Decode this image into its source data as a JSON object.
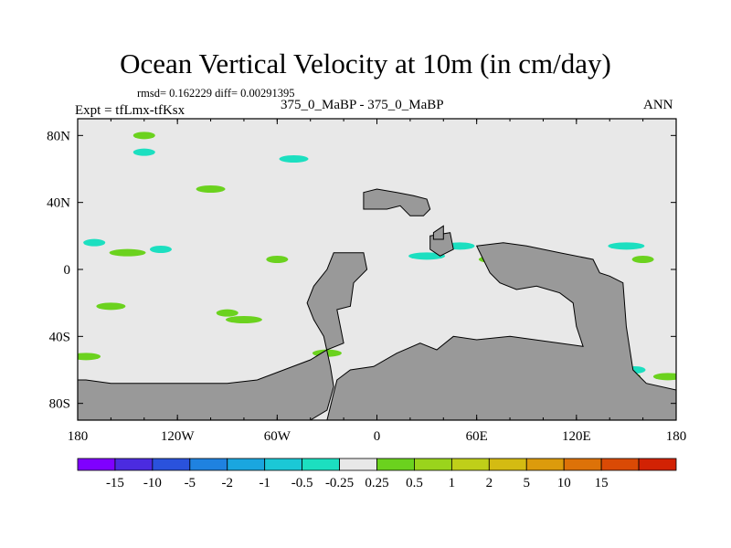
{
  "title": "Ocean Vertical Velocity at 10m (in cm/day)",
  "stats_text": "rmsd= 0.162229  diff= 0.00291395",
  "expt_text": "Expt = tfLmx-tfKsx",
  "case_text": "375_0_MaBP - 375_0_MaBP",
  "season_text": "ANN",
  "colors": {
    "land": "#999999",
    "ocean_background": "#e8e8e8",
    "bins": [
      "#7f00ff",
      "#4b2be0",
      "#2a52dc",
      "#1f82e0",
      "#1aa6df",
      "#1bc8d6",
      "#1cdfc0",
      "#e8e8e8",
      "#6bd21e",
      "#9ad41c",
      "#bfcf19",
      "#d4bb12",
      "#dc9b0c",
      "#dd7208",
      "#da4a05",
      "#d22204"
    ]
  },
  "chart_data": {
    "type": "heatmap",
    "projection": "cylindrical equidistant",
    "variable": "Ocean Vertical Velocity at 10m",
    "units": "cm/day",
    "xlim": [
      -180,
      180
    ],
    "ylim": [
      -90,
      90
    ],
    "x_ticks": [
      {
        "value": -180,
        "label": "180"
      },
      {
        "value": -120,
        "label": "120W"
      },
      {
        "value": -60,
        "label": "60W"
      },
      {
        "value": 0,
        "label": "0"
      },
      {
        "value": 60,
        "label": "60E"
      },
      {
        "value": 120,
        "label": "120E"
      },
      {
        "value": 180,
        "label": "180"
      }
    ],
    "y_ticks": [
      {
        "value": 80,
        "label": "80N"
      },
      {
        "value": 40,
        "label": "40N"
      },
      {
        "value": 0,
        "label": "0"
      },
      {
        "value": -40,
        "label": "40S"
      },
      {
        "value": -80,
        "label": "80S"
      }
    ],
    "colorbar": {
      "labels": [
        "-15",
        "-10",
        "-5",
        "-2",
        "-1",
        "-0.5",
        "-0.25",
        "0.25",
        "0.5",
        "1",
        "2",
        "5",
        "10",
        "15"
      ]
    },
    "land": [
      {
        "name": "Americas",
        "polygon": [
          [
            -26,
            10
          ],
          [
            -8,
            10
          ],
          [
            -6,
            0
          ],
          [
            -14,
            -8
          ],
          [
            -16,
            -22
          ],
          [
            -24,
            -24
          ],
          [
            -20,
            -44
          ],
          [
            -30,
            -48
          ],
          [
            -40,
            -54
          ],
          [
            -56,
            -60
          ],
          [
            -72,
            -66
          ],
          [
            -90,
            -68
          ],
          [
            -160,
            -68
          ],
          [
            -175,
            -66
          ],
          [
            -180,
            -66
          ],
          [
            -180,
            -90
          ],
          [
            -140,
            -90
          ],
          [
            -110,
            -90
          ],
          [
            -70,
            -90
          ],
          [
            -40,
            -90
          ],
          [
            -30,
            -84
          ],
          [
            -26,
            -70
          ],
          [
            -28,
            -58
          ],
          [
            -32,
            -40
          ],
          [
            -38,
            -30
          ],
          [
            -42,
            -20
          ],
          [
            -38,
            -10
          ],
          [
            -30,
            0
          ]
        ]
      },
      {
        "name": "Eurasia-north",
        "polygon": [
          [
            -8,
            46
          ],
          [
            0,
            48
          ],
          [
            12,
            46
          ],
          [
            22,
            44
          ],
          [
            30,
            42
          ],
          [
            32,
            36
          ],
          [
            28,
            32
          ],
          [
            20,
            32
          ],
          [
            14,
            38
          ],
          [
            6,
            36
          ],
          [
            0,
            36
          ],
          [
            -8,
            36
          ]
        ]
      },
      {
        "name": "Africa-Asia-south",
        "polygon": [
          [
            60,
            14
          ],
          [
            76,
            16
          ],
          [
            90,
            14
          ],
          [
            110,
            10
          ],
          [
            130,
            6
          ],
          [
            134,
            -2
          ],
          [
            140,
            -4
          ],
          [
            148,
            -8
          ],
          [
            150,
            -34
          ],
          [
            154,
            -60
          ],
          [
            162,
            -68
          ],
          [
            180,
            -72
          ],
          [
            180,
            -90
          ],
          [
            -30,
            -90
          ],
          [
            -24,
            -66
          ],
          [
            -16,
            -60
          ],
          [
            -2,
            -58
          ],
          [
            12,
            -50
          ],
          [
            26,
            -44
          ],
          [
            36,
            -48
          ],
          [
            46,
            -40
          ],
          [
            60,
            -42
          ],
          [
            80,
            -40
          ],
          [
            110,
            -44
          ],
          [
            124,
            -46
          ],
          [
            120,
            -34
          ],
          [
            118,
            -20
          ],
          [
            110,
            -14
          ],
          [
            96,
            -10
          ],
          [
            84,
            -12
          ],
          [
            74,
            -8
          ],
          [
            68,
            -2
          ],
          [
            64,
            6
          ]
        ]
      },
      {
        "name": "island-east",
        "polygon": [
          [
            32,
            20
          ],
          [
            44,
            22
          ],
          [
            46,
            12
          ],
          [
            38,
            8
          ],
          [
            32,
            12
          ]
        ]
      },
      {
        "name": "island-north",
        "polygon": [
          [
            34,
            22
          ],
          [
            40,
            26
          ],
          [
            40,
            18
          ],
          [
            34,
            18
          ]
        ]
      }
    ],
    "positive_patches": [
      {
        "lon": -140,
        "lat": 80,
        "value": 0.5
      },
      {
        "lon": -100,
        "lat": 48,
        "value": 0.5
      },
      {
        "lon": -150,
        "lat": 10,
        "value": 0.5
      },
      {
        "lon": -60,
        "lat": 6,
        "value": 0.5
      },
      {
        "lon": 70,
        "lat": 6,
        "value": 0.5
      },
      {
        "lon": 110,
        "lat": 6,
        "value": 0.5
      },
      {
        "lon": 160,
        "lat": 6,
        "value": 0.5
      },
      {
        "lon": -160,
        "lat": -22,
        "value": 0.5
      },
      {
        "lon": -80,
        "lat": -30,
        "value": 0.5
      },
      {
        "lon": -90,
        "lat": -26,
        "value": 0.5
      },
      {
        "lon": -30,
        "lat": -50,
        "value": 0.5
      },
      {
        "lon": 120,
        "lat": -8,
        "value": 0.5
      },
      {
        "lon": 140,
        "lat": -36,
        "value": 0.5
      },
      {
        "lon": -175,
        "lat": -52,
        "value": 0.5
      },
      {
        "lon": -100,
        "lat": -72,
        "value": 0.5
      },
      {
        "lon": 152,
        "lat": -64,
        "value": 0.5
      },
      {
        "lon": 175,
        "lat": -64,
        "value": 0.5
      }
    ],
    "negative_patches": [
      {
        "lon": -140,
        "lat": 70,
        "value": -0.5
      },
      {
        "lon": -50,
        "lat": 66,
        "value": -0.5
      },
      {
        "lon": 30,
        "lat": 8,
        "value": -0.5
      },
      {
        "lon": -170,
        "lat": 16,
        "value": -0.5
      },
      {
        "lon": 50,
        "lat": 14,
        "value": -0.5
      },
      {
        "lon": 150,
        "lat": 14,
        "value": -0.5
      },
      {
        "lon": -130,
        "lat": 12,
        "value": -0.5
      },
      {
        "lon": -160,
        "lat": -72,
        "value": -0.5
      },
      {
        "lon": -120,
        "lat": -74,
        "value": -0.5
      },
      {
        "lon": 155,
        "lat": -60,
        "value": -0.5
      },
      {
        "lon": 170,
        "lat": -74,
        "value": -0.5
      }
    ]
  }
}
